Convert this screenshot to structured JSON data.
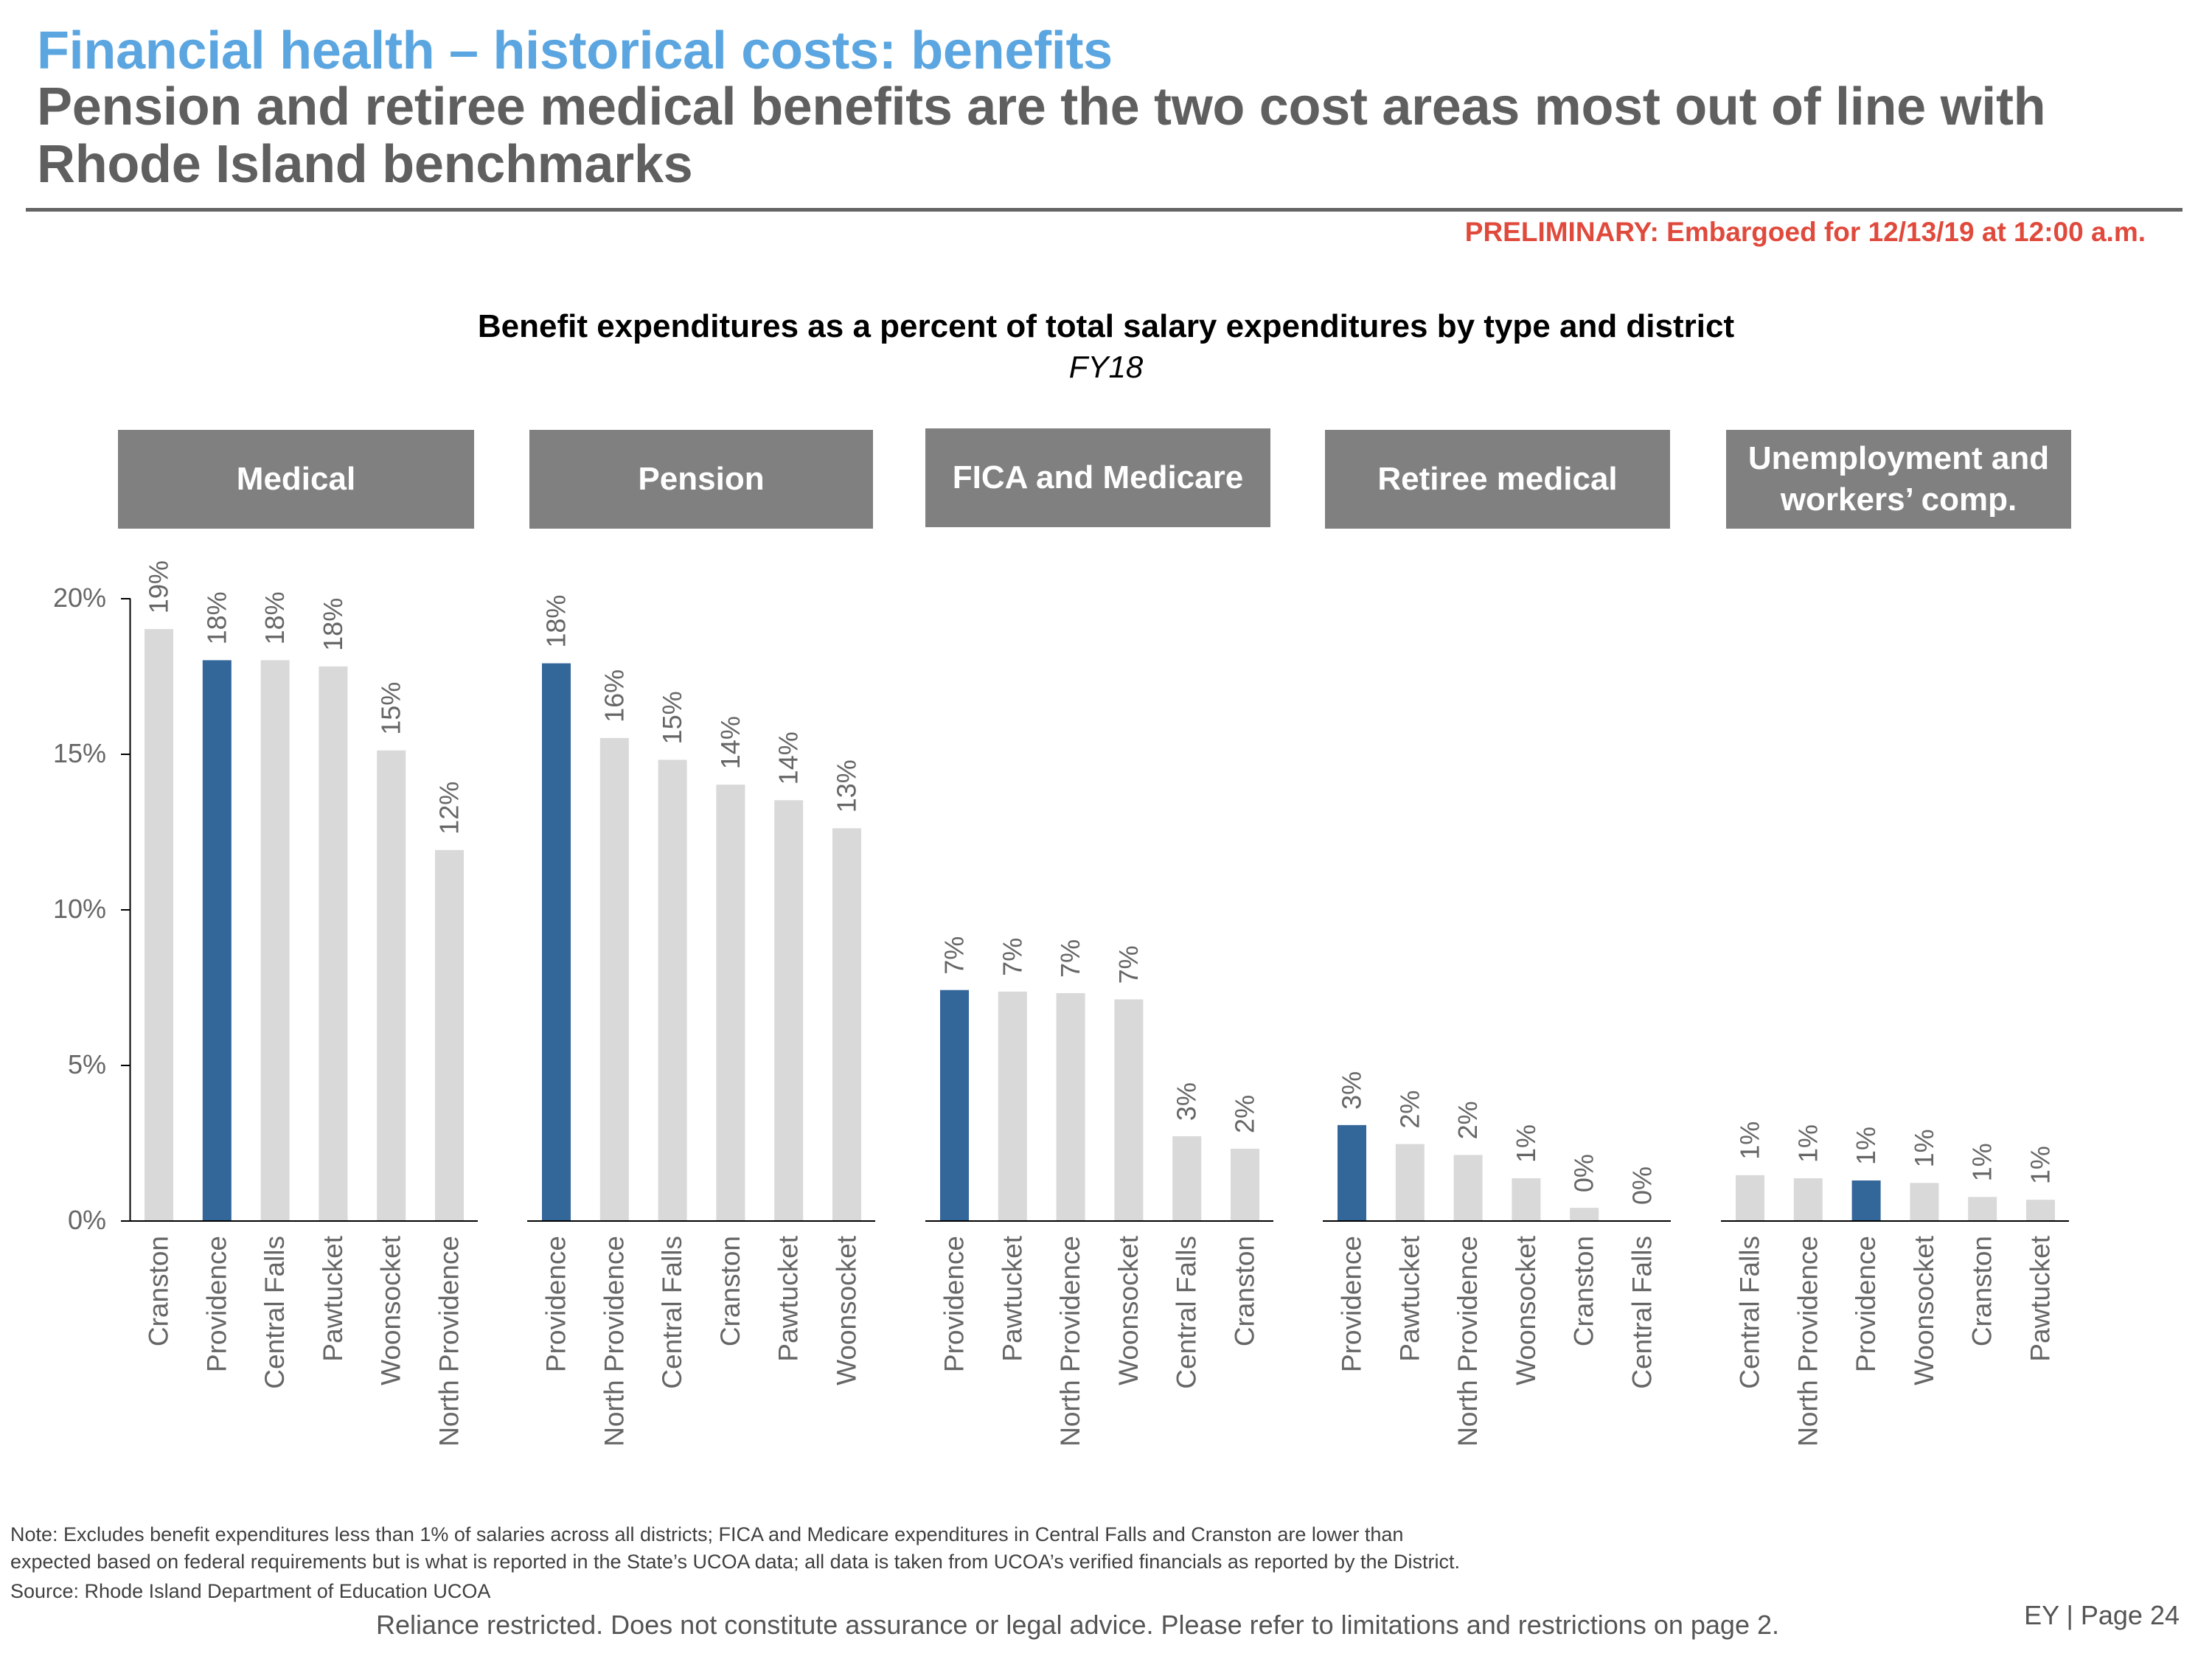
{
  "header": {
    "section_title": "Financial health – historical costs: benefits",
    "headline": "Pension and retiree medical benefits are the two cost areas most out of line with Rhode Island benchmarks",
    "preliminary_notice": "PRELIMINARY: Embargoed for 12/13/19 at 12:00 a.m."
  },
  "colors": {
    "title_blue": "#5ba6e0",
    "headline_gray": "#5f5f5f",
    "preliminary_red": "#e04a3c",
    "highlight_bar": "#336699",
    "other_bar": "#d9d9d9",
    "panel_header_bg": "#808080"
  },
  "chart_data": {
    "type": "bar",
    "title": "Benefit expenditures as a percent of total salary expenditures by type and district",
    "subtitle": "FY18",
    "xlabel": "",
    "ylabel": "",
    "ylim": [
      0,
      20
    ],
    "yticks": [
      0,
      5,
      10,
      15,
      20
    ],
    "ytick_labels": [
      "0%",
      "5%",
      "10%",
      "15%",
      "20%"
    ],
    "grid": false,
    "legend": "none",
    "highlight_category": "Providence",
    "panels": [
      {
        "name": "Medical",
        "categories": [
          "Cranston",
          "Providence",
          "Central Falls",
          "Pawtucket",
          "Woonsocket",
          "North Providence"
        ],
        "values": [
          19.0,
          18.0,
          18.0,
          17.8,
          15.1,
          11.9
        ],
        "labels": [
          "19%",
          "18%",
          "18%",
          "18%",
          "15%",
          "12%"
        ]
      },
      {
        "name": "Pension",
        "categories": [
          "Providence",
          "North Providence",
          "Central Falls",
          "Cranston",
          "Pawtucket",
          "Woonsocket"
        ],
        "values": [
          17.9,
          15.5,
          14.8,
          14.0,
          13.5,
          12.6
        ],
        "labels": [
          "18%",
          "16%",
          "15%",
          "14%",
          "14%",
          "13%"
        ]
      },
      {
        "name": "FICA and Medicare",
        "categories": [
          "Providence",
          "Pawtucket",
          "North Providence",
          "Woonsocket",
          "Central Falls",
          "Cranston"
        ],
        "values": [
          7.4,
          7.35,
          7.3,
          7.1,
          2.7,
          2.3
        ],
        "labels": [
          "7%",
          "7%",
          "7%",
          "7%",
          "3%",
          "2%"
        ]
      },
      {
        "name": "Retiree medical",
        "categories": [
          "Providence",
          "Pawtucket",
          "North Providence",
          "Woonsocket",
          "Cranston",
          "Central Falls"
        ],
        "values": [
          3.06,
          2.45,
          2.1,
          1.35,
          0.4,
          0.0
        ],
        "labels": [
          "3%",
          "2%",
          "2%",
          "1%",
          "0%",
          "0%"
        ]
      },
      {
        "name": "Unemployment and workers’ comp.",
        "name_lines": [
          "Unemployment and",
          "workers’ comp."
        ],
        "categories": [
          "Central Falls",
          "North Providence",
          "Providence",
          "Woonsocket",
          "Cranston",
          "Pawtucket"
        ],
        "values": [
          1.45,
          1.35,
          1.28,
          1.2,
          0.75,
          0.66
        ],
        "labels": [
          "1%",
          "1%",
          "1%",
          "1%",
          "1%",
          "1%"
        ]
      }
    ]
  },
  "footer": {
    "note_line1": "Note: Excludes benefit expenditures less than 1% of salaries across all districts; FICA and Medicare expenditures in Central Falls and Cranston are lower than",
    "note_line2": "expected based on federal requirements but is what is reported in the State’s UCOA data; all data is taken from UCOA’s verified financials as reported by the District.",
    "source": "Source: Rhode Island Department of Education UCOA",
    "disclaimer": "Reliance restricted. Does not constitute assurance or legal advice. Please refer to limitations and restrictions on page 2.",
    "page_label": "EY | Page 24"
  }
}
